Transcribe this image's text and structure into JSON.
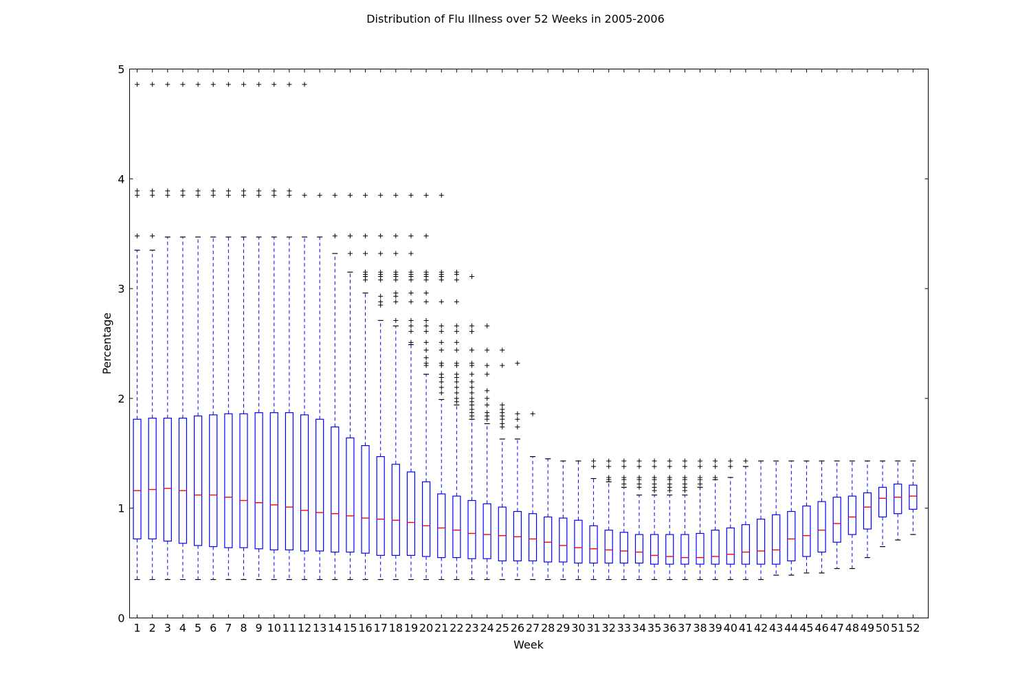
{
  "chart_data": {
    "type": "boxplot",
    "title": "Distribution of Flu Illness over 52 Weeks in 2005-2006",
    "xlabel": "Week",
    "ylabel": "Percentage",
    "ylim": [
      0,
      5
    ],
    "yticks": [
      0,
      1,
      2,
      3,
      4,
      5
    ],
    "grid": false,
    "colors": {
      "box": "#0000ff",
      "whisker": "#0000ff",
      "median": "#ff0000",
      "flier": "#000000",
      "cap": "#000000"
    },
    "categories": [
      "1",
      "2",
      "3",
      "4",
      "5",
      "6",
      "7",
      "8",
      "9",
      "10",
      "11",
      "12",
      "13",
      "14",
      "15",
      "16",
      "17",
      "18",
      "19",
      "20",
      "21",
      "22",
      "23",
      "24",
      "25",
      "26",
      "27",
      "28",
      "29",
      "30",
      "31",
      "32",
      "33",
      "34",
      "35",
      "36",
      "37",
      "38",
      "39",
      "40",
      "41",
      "42",
      "43",
      "44",
      "45",
      "46",
      "47",
      "48",
      "49",
      "50",
      "51",
      "52"
    ],
    "boxes": [
      {
        "low": 0.35,
        "q1": 0.72,
        "median": 1.16,
        "q3": 1.81,
        "high": 3.35,
        "fliers": [
          3.48,
          3.85,
          3.89,
          4.86
        ]
      },
      {
        "low": 0.35,
        "q1": 0.72,
        "median": 1.17,
        "q3": 1.82,
        "high": 3.35,
        "fliers": [
          3.48,
          3.85,
          3.89,
          4.86
        ]
      },
      {
        "low": 0.35,
        "q1": 0.7,
        "median": 1.18,
        "q3": 1.82,
        "high": 3.47,
        "fliers": [
          3.85,
          3.89,
          4.86
        ]
      },
      {
        "low": 0.35,
        "q1": 0.68,
        "median": 1.16,
        "q3": 1.82,
        "high": 3.47,
        "fliers": [
          3.85,
          3.89,
          4.86
        ]
      },
      {
        "low": 0.35,
        "q1": 0.66,
        "median": 1.12,
        "q3": 1.84,
        "high": 3.47,
        "fliers": [
          3.85,
          3.89,
          4.86
        ]
      },
      {
        "low": 0.35,
        "q1": 0.65,
        "median": 1.12,
        "q3": 1.85,
        "high": 3.47,
        "fliers": [
          3.85,
          3.89,
          4.86
        ]
      },
      {
        "low": 0.35,
        "q1": 0.64,
        "median": 1.1,
        "q3": 1.86,
        "high": 3.47,
        "fliers": [
          3.85,
          3.89,
          4.86
        ]
      },
      {
        "low": 0.35,
        "q1": 0.64,
        "median": 1.07,
        "q3": 1.86,
        "high": 3.47,
        "fliers": [
          3.85,
          3.89,
          4.86
        ]
      },
      {
        "low": 0.35,
        "q1": 0.63,
        "median": 1.05,
        "q3": 1.87,
        "high": 3.47,
        "fliers": [
          3.85,
          3.89,
          4.86
        ]
      },
      {
        "low": 0.35,
        "q1": 0.62,
        "median": 1.03,
        "q3": 1.87,
        "high": 3.47,
        "fliers": [
          3.85,
          3.89,
          4.86
        ]
      },
      {
        "low": 0.35,
        "q1": 0.62,
        "median": 1.01,
        "q3": 1.87,
        "high": 3.47,
        "fliers": [
          3.85,
          3.89,
          4.86
        ]
      },
      {
        "low": 0.35,
        "q1": 0.61,
        "median": 0.98,
        "q3": 1.85,
        "high": 3.47,
        "fliers": [
          3.85,
          4.86
        ]
      },
      {
        "low": 0.35,
        "q1": 0.61,
        "median": 0.96,
        "q3": 1.81,
        "high": 3.47,
        "fliers": [
          3.85
        ]
      },
      {
        "low": 0.35,
        "q1": 0.6,
        "median": 0.95,
        "q3": 1.74,
        "high": 3.32,
        "fliers": [
          3.48,
          3.85
        ]
      },
      {
        "low": 0.35,
        "q1": 0.6,
        "median": 0.93,
        "q3": 1.64,
        "high": 3.15,
        "fliers": [
          3.32,
          3.48,
          3.85
        ]
      },
      {
        "low": 0.35,
        "q1": 0.59,
        "median": 0.91,
        "q3": 1.57,
        "high": 2.96,
        "fliers": [
          3.08,
          3.11,
          3.13,
          3.15,
          3.32,
          3.48,
          3.85
        ]
      },
      {
        "low": 0.35,
        "q1": 0.57,
        "median": 0.9,
        "q3": 1.47,
        "high": 2.71,
        "fliers": [
          2.85,
          2.88,
          2.93,
          3.08,
          3.11,
          3.13,
          3.15,
          3.32,
          3.48,
          3.85
        ]
      },
      {
        "low": 0.35,
        "q1": 0.57,
        "median": 0.89,
        "q3": 1.4,
        "high": 2.66,
        "fliers": [
          2.71,
          2.88,
          2.93,
          2.96,
          3.08,
          3.11,
          3.13,
          3.15,
          3.32,
          3.48,
          3.85
        ]
      },
      {
        "low": 0.35,
        "q1": 0.57,
        "median": 0.87,
        "q3": 1.33,
        "high": 2.49,
        "fliers": [
          2.51,
          2.61,
          2.66,
          2.71,
          2.88,
          2.96,
          3.08,
          3.11,
          3.13,
          3.15,
          3.32,
          3.48,
          3.85
        ]
      },
      {
        "low": 0.35,
        "q1": 0.56,
        "median": 0.84,
        "q3": 1.24,
        "high": 2.22,
        "fliers": [
          2.3,
          2.32,
          2.37,
          2.44,
          2.51,
          2.61,
          2.66,
          2.71,
          2.88,
          2.96,
          3.08,
          3.11,
          3.13,
          3.15,
          3.48,
          3.85
        ]
      },
      {
        "low": 0.35,
        "q1": 0.55,
        "median": 0.82,
        "q3": 1.13,
        "high": 1.99,
        "fliers": [
          2.05,
          2.1,
          2.15,
          2.19,
          2.22,
          2.3,
          2.32,
          2.44,
          2.51,
          2.61,
          2.66,
          2.88,
          3.08,
          3.11,
          3.13,
          3.15,
          3.85
        ]
      },
      {
        "low": 0.35,
        "q1": 0.55,
        "median": 0.8,
        "q3": 1.11,
        "high": 1.94,
        "fliers": [
          1.97,
          2.0,
          2.05,
          2.1,
          2.15,
          2.19,
          2.22,
          2.3,
          2.32,
          2.44,
          2.51,
          2.61,
          2.66,
          2.88,
          3.08,
          3.13,
          3.15
        ]
      },
      {
        "low": 0.35,
        "q1": 0.54,
        "median": 0.77,
        "q3": 1.07,
        "high": 1.81,
        "fliers": [
          1.84,
          1.87,
          1.9,
          1.94,
          1.97,
          2.0,
          2.05,
          2.1,
          2.15,
          2.22,
          2.3,
          2.32,
          2.44,
          2.61,
          2.66,
          3.11
        ]
      },
      {
        "low": 0.35,
        "q1": 0.54,
        "median": 0.76,
        "q3": 1.04,
        "high": 1.77,
        "fliers": [
          1.81,
          1.84,
          1.87,
          1.94,
          2.0,
          2.07,
          2.22,
          2.3,
          2.44,
          2.66
        ]
      },
      {
        "low": 0.35,
        "q1": 0.52,
        "median": 0.75,
        "q3": 1.01,
        "high": 1.63,
        "fliers": [
          1.74,
          1.77,
          1.81,
          1.84,
          1.87,
          1.9,
          1.94,
          2.3,
          2.44
        ]
      },
      {
        "low": 0.35,
        "q1": 0.52,
        "median": 0.74,
        "q3": 0.97,
        "high": 1.63,
        "fliers": [
          1.74,
          1.81,
          1.86,
          2.32
        ]
      },
      {
        "low": 0.35,
        "q1": 0.52,
        "median": 0.72,
        "q3": 0.95,
        "high": 1.47,
        "fliers": [
          1.86
        ]
      },
      {
        "low": 0.35,
        "q1": 0.51,
        "median": 0.69,
        "q3": 0.92,
        "high": 1.45,
        "fliers": []
      },
      {
        "low": 0.35,
        "q1": 0.51,
        "median": 0.66,
        "q3": 0.91,
        "high": 1.43,
        "fliers": []
      },
      {
        "low": 0.35,
        "q1": 0.5,
        "median": 0.64,
        "q3": 0.89,
        "high": 1.43,
        "fliers": []
      },
      {
        "low": 0.35,
        "q1": 0.5,
        "median": 0.63,
        "q3": 0.84,
        "high": 1.27,
        "fliers": [
          1.38,
          1.43
        ]
      },
      {
        "low": 0.35,
        "q1": 0.5,
        "median": 0.62,
        "q3": 0.8,
        "high": 1.24,
        "fliers": [
          1.26,
          1.28,
          1.38,
          1.43
        ]
      },
      {
        "low": 0.35,
        "q1": 0.5,
        "median": 0.61,
        "q3": 0.78,
        "high": 1.19,
        "fliers": [
          1.22,
          1.26,
          1.28,
          1.38,
          1.43
        ]
      },
      {
        "low": 0.35,
        "q1": 0.5,
        "median": 0.6,
        "q3": 0.76,
        "high": 1.12,
        "fliers": [
          1.19,
          1.22,
          1.26,
          1.28,
          1.38,
          1.43
        ]
      },
      {
        "low": 0.35,
        "q1": 0.49,
        "median": 0.57,
        "q3": 0.76,
        "high": 1.12,
        "fliers": [
          1.16,
          1.19,
          1.22,
          1.26,
          1.28,
          1.38,
          1.43
        ]
      },
      {
        "low": 0.35,
        "q1": 0.49,
        "median": 0.56,
        "q3": 0.76,
        "high": 1.12,
        "fliers": [
          1.16,
          1.19,
          1.22,
          1.26,
          1.28,
          1.38,
          1.43
        ]
      },
      {
        "low": 0.35,
        "q1": 0.49,
        "median": 0.55,
        "q3": 0.76,
        "high": 1.12,
        "fliers": [
          1.16,
          1.19,
          1.22,
          1.26,
          1.28,
          1.38,
          1.43
        ]
      },
      {
        "low": 0.35,
        "q1": 0.49,
        "median": 0.55,
        "q3": 0.77,
        "high": 1.19,
        "fliers": [
          1.22,
          1.26,
          1.28,
          1.38,
          1.43
        ]
      },
      {
        "low": 0.35,
        "q1": 0.49,
        "median": 0.56,
        "q3": 0.8,
        "high": 1.26,
        "fliers": [
          1.28,
          1.38,
          1.43
        ]
      },
      {
        "low": 0.35,
        "q1": 0.49,
        "median": 0.58,
        "q3": 0.82,
        "high": 1.28,
        "fliers": [
          1.38,
          1.43
        ]
      },
      {
        "low": 0.35,
        "q1": 0.49,
        "median": 0.6,
        "q3": 0.85,
        "high": 1.38,
        "fliers": [
          1.43
        ]
      },
      {
        "low": 0.35,
        "q1": 0.49,
        "median": 0.61,
        "q3": 0.9,
        "high": 1.43,
        "fliers": []
      },
      {
        "low": 0.39,
        "q1": 0.49,
        "median": 0.62,
        "q3": 0.94,
        "high": 1.43,
        "fliers": []
      },
      {
        "low": 0.39,
        "q1": 0.52,
        "median": 0.72,
        "q3": 0.97,
        "high": 1.43,
        "fliers": []
      },
      {
        "low": 0.41,
        "q1": 0.56,
        "median": 0.75,
        "q3": 1.02,
        "high": 1.43,
        "fliers": []
      },
      {
        "low": 0.41,
        "q1": 0.6,
        "median": 0.8,
        "q3": 1.06,
        "high": 1.43,
        "fliers": []
      },
      {
        "low": 0.45,
        "q1": 0.69,
        "median": 0.86,
        "q3": 1.1,
        "high": 1.43,
        "fliers": []
      },
      {
        "low": 0.45,
        "q1": 0.76,
        "median": 0.92,
        "q3": 1.11,
        "high": 1.43,
        "fliers": []
      },
      {
        "low": 0.55,
        "q1": 0.81,
        "median": 1.01,
        "q3": 1.14,
        "high": 1.43,
        "fliers": []
      },
      {
        "low": 0.65,
        "q1": 0.92,
        "median": 1.09,
        "q3": 1.19,
        "high": 1.43,
        "fliers": []
      },
      {
        "low": 0.71,
        "q1": 0.95,
        "median": 1.1,
        "q3": 1.22,
        "high": 1.43,
        "fliers": []
      },
      {
        "low": 0.76,
        "q1": 0.99,
        "median": 1.11,
        "q3": 1.21,
        "high": 1.43,
        "fliers": []
      }
    ]
  }
}
